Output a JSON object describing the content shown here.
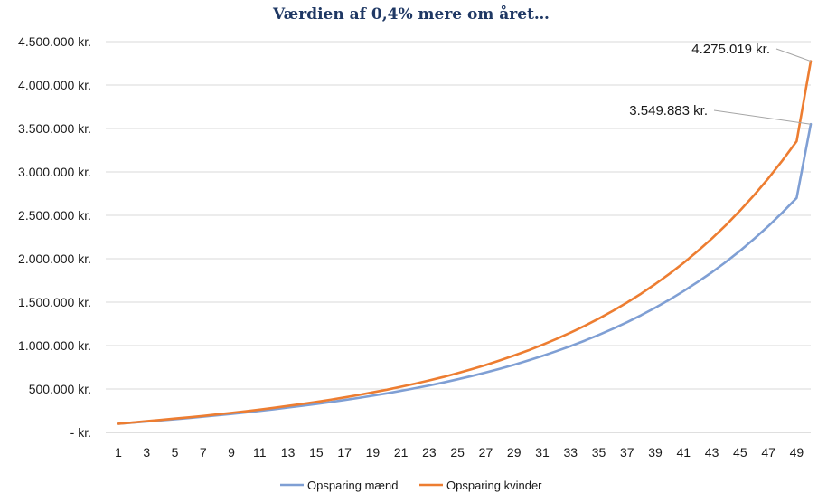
{
  "chart_data": {
    "type": "line",
    "title": "Værdien af 0,4% mere om året…",
    "xlabel": "",
    "ylabel": "",
    "x": [
      1,
      2,
      3,
      4,
      5,
      6,
      7,
      8,
      9,
      10,
      11,
      12,
      13,
      14,
      15,
      16,
      17,
      18,
      19,
      20,
      21,
      22,
      23,
      24,
      25,
      26,
      27,
      28,
      29,
      30,
      31,
      32,
      33,
      34,
      35,
      36,
      37,
      38,
      39,
      40,
      41,
      42,
      43,
      44,
      45,
      46,
      47,
      48,
      49,
      50
    ],
    "x_tick_labels": [
      "1",
      "3",
      "5",
      "7",
      "9",
      "11",
      "13",
      "15",
      "17",
      "19",
      "21",
      "23",
      "25",
      "27",
      "29",
      "31",
      "33",
      "35",
      "37",
      "39",
      "41",
      "43",
      "45",
      "47",
      "49"
    ],
    "y_tick_labels": [
      "-   kr.",
      "500.000 kr.",
      "1.000.000 kr.",
      "1.500.000 kr.",
      "2.000.000 kr.",
      "2.500.000 kr.",
      "3.000.000 kr.",
      "3.500.000 kr.",
      "4.000.000 kr.",
      "4.500.000 kr."
    ],
    "ylim": [
      0,
      4500000
    ],
    "grid": true,
    "legend_position": "bottom",
    "series": [
      {
        "name": "Opsparing mænd",
        "color": "#7f9fd4",
        "values": [
          100000,
          113000,
          126000,
          139000,
          152000,
          166000,
          181000,
          197000,
          213000,
          230000,
          248000,
          266000,
          286000,
          306000,
          327000,
          349000,
          373000,
          397000,
          423000,
          450000,
          479000,
          509000,
          541000,
          575000,
          611000,
          649000,
          690000,
          733000,
          779000,
          828000,
          880000,
          935000,
          994000,
          1056000,
          1123000,
          1194000,
          1269000,
          1350000,
          1436000,
          1528000,
          1627000,
          1732000,
          1844000,
          1964000,
          2092000,
          2230000,
          2376000,
          2533000,
          2700000,
          3549883
        ]
      },
      {
        "name": "Opsparing kvinder",
        "color": "#ed7d31",
        "values": [
          100000,
          114000,
          129000,
          144000,
          159000,
          174000,
          190000,
          207000,
          225000,
          243000,
          263000,
          283000,
          305000,
          327000,
          351000,
          376000,
          403000,
          431000,
          461000,
          492000,
          526000,
          561000,
          599000,
          639000,
          682000,
          728000,
          776000,
          829000,
          885000,
          944000,
          1008000,
          1076000,
          1149000,
          1227000,
          1310000,
          1400000,
          1496000,
          1598000,
          1708000,
          1826000,
          1952000,
          2087000,
          2232000,
          2388000,
          2555000,
          2734000,
          2926000,
          3132000,
          3353000,
          4275019
        ]
      }
    ],
    "annotations": [
      {
        "text": "4.275.019 kr.",
        "series": 1,
        "x": 50
      },
      {
        "text": "3.549.883 kr.",
        "series": 0,
        "x": 50
      }
    ]
  }
}
